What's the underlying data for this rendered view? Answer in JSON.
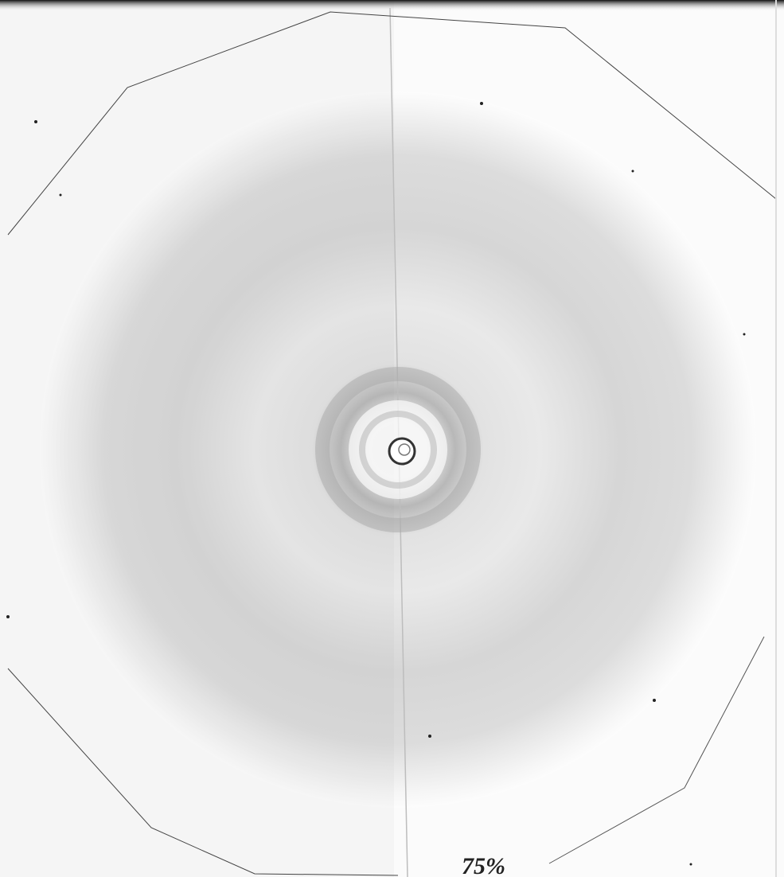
{
  "annotation": "75%"
}
